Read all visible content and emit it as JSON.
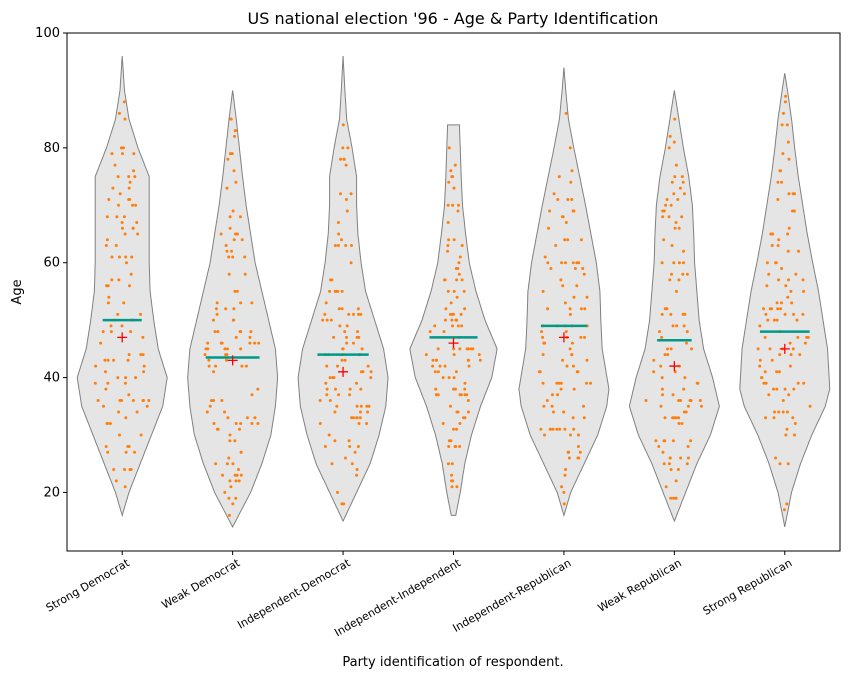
{
  "chart_data": {
    "type": "violin",
    "title": "US national election '96 - Age & Party Identification",
    "xlabel": "Party identification of respondent.",
    "ylabel": "Age",
    "ylim": [
      9.8,
      100
    ],
    "yticks": [
      20,
      40,
      60,
      80,
      100
    ],
    "grid": false,
    "colors": {
      "violin_fill": "#e5e5e5",
      "violin_edge": "#808080",
      "points": "#ff7f0e",
      "median": "#009988",
      "mean": "#ff0000"
    },
    "categories": [
      "Strong Democrat",
      "Weak Democrat",
      "Independent-Democrat",
      "Independent-Independent",
      "Independent-Republican",
      "Weak Republican",
      "Strong Republican"
    ],
    "series": [
      {
        "min": 16,
        "max": 96,
        "median": 50,
        "mean": 47,
        "density": [
          [
            16,
            0
          ],
          [
            20,
            0.15
          ],
          [
            25,
            0.4
          ],
          [
            30,
            0.65
          ],
          [
            35,
            0.9
          ],
          [
            40,
            1.0
          ],
          [
            45,
            0.8
          ],
          [
            50,
            0.7
          ],
          [
            55,
            0.62
          ],
          [
            60,
            0.6
          ],
          [
            65,
            0.6
          ],
          [
            70,
            0.6
          ],
          [
            75,
            0.6
          ],
          [
            80,
            0.35
          ],
          [
            85,
            0.15
          ],
          [
            90,
            0.05
          ],
          [
            96,
            0
          ]
        ]
      },
      {
        "min": 14,
        "max": 90,
        "median": 43.5,
        "mean": 43,
        "density": [
          [
            14,
            0
          ],
          [
            20,
            0.4
          ],
          [
            25,
            0.65
          ],
          [
            30,
            0.85
          ],
          [
            35,
            0.95
          ],
          [
            40,
            1.0
          ],
          [
            45,
            0.95
          ],
          [
            50,
            0.8
          ],
          [
            55,
            0.65
          ],
          [
            60,
            0.5
          ],
          [
            65,
            0.4
          ],
          [
            70,
            0.3
          ],
          [
            75,
            0.22
          ],
          [
            80,
            0.15
          ],
          [
            85,
            0.08
          ],
          [
            90,
            0
          ]
        ]
      },
      {
        "min": 15,
        "max": 96,
        "median": 44,
        "mean": 41,
        "density": [
          [
            15,
            0
          ],
          [
            20,
            0.3
          ],
          [
            25,
            0.6
          ],
          [
            30,
            0.8
          ],
          [
            35,
            0.95
          ],
          [
            40,
            1.0
          ],
          [
            45,
            0.9
          ],
          [
            50,
            0.7
          ],
          [
            55,
            0.5
          ],
          [
            60,
            0.4
          ],
          [
            65,
            0.33
          ],
          [
            70,
            0.3
          ],
          [
            75,
            0.3
          ],
          [
            80,
            0.2
          ],
          [
            85,
            0.08
          ],
          [
            90,
            0.04
          ],
          [
            96,
            0
          ]
        ]
      },
      {
        "min": 16,
        "max": 84,
        "median": 47,
        "mean": 46,
        "density": [
          [
            16,
            0.05
          ],
          [
            20,
            0.15
          ],
          [
            25,
            0.25
          ],
          [
            30,
            0.4
          ],
          [
            35,
            0.6
          ],
          [
            40,
            0.85
          ],
          [
            45,
            0.97
          ],
          [
            50,
            0.7
          ],
          [
            55,
            0.5
          ],
          [
            60,
            0.35
          ],
          [
            65,
            0.27
          ],
          [
            70,
            0.2
          ],
          [
            75,
            0.17
          ],
          [
            80,
            0.15
          ],
          [
            84,
            0.13
          ]
        ]
      },
      {
        "min": 16,
        "max": 94,
        "median": 49,
        "mean": 47,
        "density": [
          [
            16,
            0
          ],
          [
            20,
            0.15
          ],
          [
            25,
            0.45
          ],
          [
            30,
            0.75
          ],
          [
            35,
            0.95
          ],
          [
            38,
            1.0
          ],
          [
            45,
            0.85
          ],
          [
            50,
            0.82
          ],
          [
            55,
            0.8
          ],
          [
            60,
            0.72
          ],
          [
            65,
            0.6
          ],
          [
            70,
            0.48
          ],
          [
            75,
            0.35
          ],
          [
            80,
            0.22
          ],
          [
            85,
            0.1
          ],
          [
            90,
            0.04
          ],
          [
            94,
            0
          ]
        ]
      },
      {
        "min": 15,
        "max": 90,
        "median": 46.5,
        "mean": 42,
        "density": [
          [
            15,
            0
          ],
          [
            20,
            0.25
          ],
          [
            25,
            0.5
          ],
          [
            30,
            0.8
          ],
          [
            35,
            1.0
          ],
          [
            40,
            0.85
          ],
          [
            45,
            0.65
          ],
          [
            50,
            0.55
          ],
          [
            55,
            0.5
          ],
          [
            60,
            0.45
          ],
          [
            65,
            0.43
          ],
          [
            70,
            0.4
          ],
          [
            75,
            0.32
          ],
          [
            80,
            0.2
          ],
          [
            85,
            0.1
          ],
          [
            90,
            0
          ]
        ]
      },
      {
        "min": 14,
        "max": 93,
        "median": 48,
        "mean": 45,
        "density": [
          [
            14,
            0
          ],
          [
            20,
            0.15
          ],
          [
            25,
            0.35
          ],
          [
            30,
            0.6
          ],
          [
            35,
            0.9
          ],
          [
            38,
            1.0
          ],
          [
            45,
            0.95
          ],
          [
            50,
            0.85
          ],
          [
            55,
            0.75
          ],
          [
            60,
            0.62
          ],
          [
            65,
            0.5
          ],
          [
            70,
            0.4
          ],
          [
            75,
            0.3
          ],
          [
            80,
            0.22
          ],
          [
            85,
            0.15
          ],
          [
            90,
            0.06
          ],
          [
            93,
            0
          ]
        ]
      }
    ]
  }
}
